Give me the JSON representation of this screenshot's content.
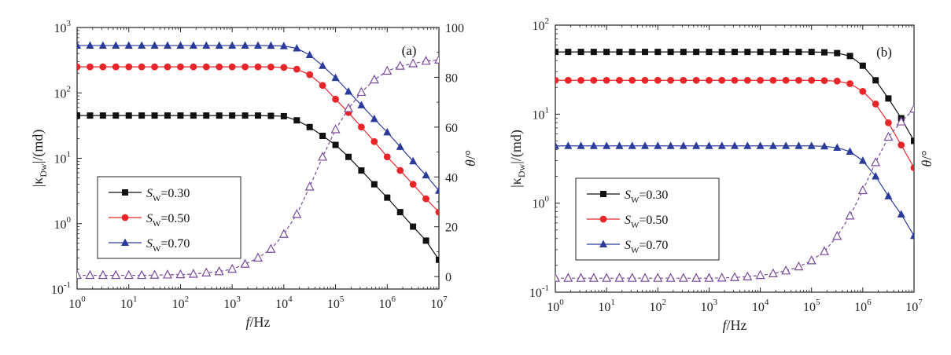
{
  "chart_data": [
    {
      "panel_label": "(a)",
      "type": "line",
      "xscale": "log",
      "xlim": [
        1,
        10000000
      ],
      "x": [
        1,
        1.78,
        3.16,
        5.62,
        10,
        17.8,
        31.6,
        56.2,
        100,
        178,
        316,
        562,
        1000,
        1780,
        3160,
        5620,
        10000,
        17800,
        31600,
        56200,
        100000,
        178000,
        316000,
        562000,
        1000000,
        1780000,
        3160000,
        5620000,
        10000000
      ],
      "xlabel": "f/Hz",
      "xticks": [
        1,
        10,
        100,
        1000,
        10000,
        100000,
        1000000,
        10000000
      ],
      "xticklabels": [
        "10^0",
        "10^1",
        "10^2",
        "10^3",
        "10^4",
        "10^5",
        "10^6",
        "10^7"
      ],
      "ylabel_left": "|κ_Dw|/(md)",
      "yscale_left": "log",
      "ylim_left": [
        0.1,
        1000
      ],
      "yticks_left": [
        0.1,
        1,
        10,
        100,
        1000
      ],
      "yticklabels_left": [
        "10^-1",
        "10^0",
        "10^1",
        "10^2",
        "10^3"
      ],
      "ylabel_right": "θ/°",
      "ylim_right": [
        -5,
        100
      ],
      "yticks_right": [
        0,
        20,
        40,
        60,
        80,
        100
      ],
      "yticklabels_right": [
        "0",
        "20",
        "40",
        "60",
        "80",
        "100"
      ],
      "legend": {
        "placement": "lower-left"
      },
      "series": [
        {
          "name": "S_W=0.30",
          "sub_base": "S",
          "sub": "W",
          "value_text": "=0.30",
          "axis": "left",
          "marker": "square",
          "color": "#111111",
          "dashed": false,
          "values": [
            45,
            45,
            45,
            45,
            45,
            45,
            45,
            45,
            45,
            45,
            45,
            45,
            45,
            45,
            45,
            44.5,
            44,
            38,
            30,
            22,
            16,
            10.5,
            6.5,
            4,
            2.5,
            1.5,
            0.9,
            0.55,
            0.28
          ]
        },
        {
          "name": "S_W=0.50",
          "sub_base": "S",
          "sub": "W",
          "value_text": "=0.50",
          "axis": "left",
          "marker": "circle",
          "color": "#e8262a",
          "dashed": false,
          "values": [
            250,
            250,
            250,
            250,
            250,
            250,
            250,
            250,
            250,
            250,
            250,
            250,
            250,
            250,
            250,
            249,
            245,
            230,
            190,
            130,
            80,
            50,
            30,
            18,
            10.5,
            6.5,
            4,
            2.4,
            1.5
          ]
        },
        {
          "name": "S_W=0.70",
          "sub_base": "S",
          "sub": "W",
          "value_text": "=0.70",
          "axis": "left",
          "marker": "triangle",
          "color": "#2b3b9a",
          "dashed": false,
          "values": [
            530,
            530,
            530,
            530,
            530,
            530,
            530,
            530,
            530,
            530,
            530,
            530,
            530,
            530,
            530,
            528,
            520,
            480,
            380,
            260,
            170,
            105,
            65,
            40,
            25,
            15,
            9,
            5.5,
            3.2
          ]
        },
        {
          "name": "θ",
          "axis": "right",
          "marker": "triangle-open",
          "color": "#7a4a9a",
          "dashed": true,
          "values": [
            0.5,
            0.5,
            0.5,
            0.5,
            0.5,
            0.5,
            0.6,
            0.7,
            0.8,
            1,
            1.5,
            2,
            3,
            5,
            7.5,
            11,
            17,
            25,
            36,
            48,
            59,
            67.5,
            74,
            79,
            82.5,
            84.5,
            85.5,
            86.5,
            87
          ]
        }
      ]
    },
    {
      "panel_label": "(b)",
      "type": "line",
      "xscale": "log",
      "xlim": [
        1,
        10000000
      ],
      "x": [
        1,
        1.78,
        3.16,
        5.62,
        10,
        17.8,
        31.6,
        56.2,
        100,
        178,
        316,
        562,
        1000,
        1780,
        3160,
        5620,
        10000,
        17800,
        31600,
        56200,
        100000,
        178000,
        316000,
        562000,
        1000000,
        1780000,
        3160000,
        5620000,
        10000000
      ],
      "xlabel": "f/Hz",
      "xticks": [
        1,
        10,
        100,
        1000,
        10000,
        100000,
        1000000,
        10000000
      ],
      "xticklabels": [
        "10^0",
        "10^1",
        "10^2",
        "10^3",
        "10^4",
        "10^5",
        "10^6",
        "10^7"
      ],
      "ylabel_left": "|κ_Dw|/(md)",
      "yscale_left": "log",
      "ylim_left": [
        0.1,
        100
      ],
      "yticks_left": [
        0.1,
        1,
        10,
        100
      ],
      "yticklabels_left": [
        "10^-1",
        "10^0",
        "10^1",
        "10^2"
      ],
      "ylabel_right": "θ/°",
      "ylim_right": [
        -5,
        100
      ],
      "legend": {
        "placement": "lower-left"
      },
      "series": [
        {
          "name": "S_W=0.30",
          "sub_base": "S",
          "sub": "W",
          "value_text": "=0.30",
          "axis": "left",
          "marker": "square",
          "color": "#111111",
          "dashed": false,
          "values": [
            50,
            50,
            50,
            50,
            50,
            50,
            50,
            50,
            50,
            50,
            50,
            50,
            50,
            50,
            50,
            50,
            50,
            50,
            50,
            50,
            50,
            49.5,
            48.5,
            45,
            35,
            24,
            15,
            9,
            5
          ]
        },
        {
          "name": "S_W=0.50",
          "sub_base": "S",
          "sub": "W",
          "value_text": "=0.50",
          "axis": "left",
          "marker": "circle",
          "color": "#e8262a",
          "dashed": false,
          "values": [
            24,
            24,
            24,
            24,
            24,
            24,
            24,
            24,
            24,
            24,
            24,
            24,
            24,
            24,
            24,
            24,
            24,
            24,
            24,
            24,
            24,
            23.8,
            23.5,
            22,
            18,
            13,
            8,
            4.5,
            2.5
          ]
        },
        {
          "name": "S_W=0.70",
          "sub_base": "S",
          "sub": "W",
          "value_text": "=0.70",
          "axis": "left",
          "marker": "triangle",
          "color": "#2b3b9a",
          "dashed": false,
          "values": [
            4.4,
            4.4,
            4.4,
            4.4,
            4.4,
            4.4,
            4.4,
            4.4,
            4.4,
            4.4,
            4.4,
            4.4,
            4.4,
            4.4,
            4.4,
            4.4,
            4.4,
            4.4,
            4.4,
            4.4,
            4.4,
            4.35,
            4.2,
            3.8,
            3,
            2,
            1.2,
            0.75,
            0.43
          ]
        },
        {
          "name": "θ",
          "axis": "right",
          "marker": "triangle-open",
          "color": "#7a4a9a",
          "dashed": true,
          "values": [
            0.5,
            0.5,
            0.5,
            0.5,
            0.5,
            0.5,
            0.5,
            0.5,
            0.5,
            0.5,
            0.5,
            0.5,
            0.5,
            0.6,
            0.8,
            1.1,
            1.6,
            2.3,
            3.4,
            5,
            7.4,
            11,
            17,
            25,
            35,
            46,
            56,
            62,
            67
          ]
        }
      ]
    }
  ]
}
